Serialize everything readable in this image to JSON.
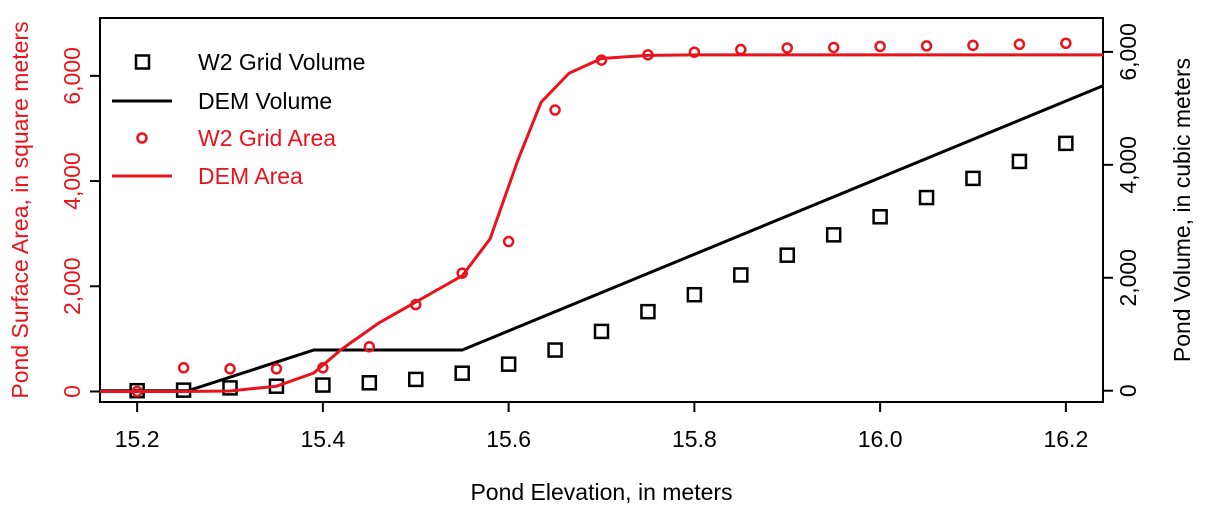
{
  "chart_data": {
    "type": "scatter",
    "xlabel": "Pond Elevation, in meters",
    "ylabel_left": "Pond Surface Area, in square meters",
    "ylabel_right": "Pond Volume, in cubic meters",
    "xlim": [
      15.16,
      16.24
    ],
    "ylim_left": [
      -200,
      7100
    ],
    "ylim_right": [
      -200,
      6600
    ],
    "x_ticks": [
      15.2,
      15.4,
      15.6,
      15.8,
      16.0,
      16.2
    ],
    "x_tick_labels": [
      "15.2",
      "15.4",
      "15.6",
      "15.8",
      "16.0",
      "16.2"
    ],
    "y_left_ticks": [
      0,
      2000,
      4000,
      6000
    ],
    "y_left_tick_labels": [
      "0",
      "2,000",
      "4,000",
      "6,000"
    ],
    "y_right_ticks": [
      0,
      2000,
      4000,
      6000
    ],
    "y_right_tick_labels": [
      "0",
      "2,000",
      "4,000",
      "6,000"
    ],
    "grid": false,
    "legend_position": "top-left",
    "colors": {
      "area": "#e8131c",
      "volume": "#000000"
    },
    "series": [
      {
        "name": "W2 Grid Volume",
        "axis": "right",
        "marker": "square",
        "color": "#000000",
        "x": [
          15.2,
          15.25,
          15.3,
          15.35,
          15.4,
          15.45,
          15.5,
          15.55,
          15.6,
          15.65,
          15.7,
          15.75,
          15.8,
          15.85,
          15.9,
          15.95,
          16.0,
          16.05,
          16.1,
          16.15,
          16.2
        ],
        "y": [
          0,
          10,
          50,
          80,
          100,
          140,
          200,
          310,
          470,
          720,
          1050,
          1400,
          1700,
          2050,
          2400,
          2760,
          3080,
          3420,
          3760,
          4060,
          4380
        ]
      },
      {
        "name": "DEM Volume",
        "axis": "right",
        "marker": "line",
        "color": "#000000",
        "x": [
          15.16,
          15.255,
          15.39,
          15.55,
          16.24
        ],
        "y": [
          0,
          0,
          720,
          720,
          5400
        ]
      },
      {
        "name": "W2 Grid Area",
        "axis": "left",
        "marker": "circle",
        "color": "#e8131c",
        "x": [
          15.2,
          15.25,
          15.3,
          15.35,
          15.4,
          15.45,
          15.5,
          15.55,
          15.6,
          15.65,
          15.7,
          15.75,
          15.8,
          15.85,
          15.9,
          15.95,
          16.0,
          16.05,
          16.1,
          16.15,
          16.2
        ],
        "y": [
          0,
          450,
          430,
          430,
          450,
          850,
          1650,
          2250,
          2850,
          5350,
          6300,
          6400,
          6450,
          6500,
          6530,
          6540,
          6560,
          6570,
          6580,
          6600,
          6620
        ]
      },
      {
        "name": "DEM Area",
        "axis": "left",
        "marker": "line",
        "color": "#e8131c",
        "x": [
          15.16,
          15.25,
          15.3,
          15.35,
          15.39,
          15.42,
          15.46,
          15.5,
          15.55,
          15.58,
          15.61,
          15.635,
          15.665,
          15.7,
          15.75,
          15.8,
          16.24
        ],
        "y": [
          0,
          0,
          10,
          100,
          350,
          800,
          1300,
          1700,
          2200,
          2900,
          4400,
          5500,
          6050,
          6330,
          6390,
          6400,
          6400
        ]
      }
    ]
  }
}
